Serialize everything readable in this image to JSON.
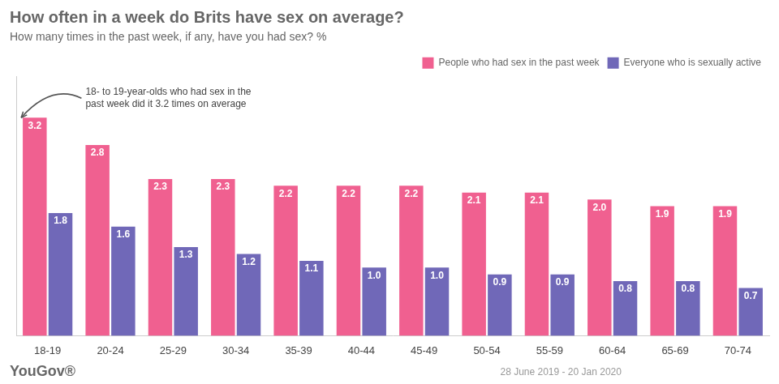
{
  "chart_data": {
    "type": "bar",
    "title": "How often in a week do Brits have sex on average?",
    "subtitle": "How many times in the past week, if any, have you had sex? %",
    "categories": [
      "18-19",
      "20-24",
      "25-29",
      "30-34",
      "35-39",
      "40-44",
      "45-49",
      "50-54",
      "55-59",
      "60-64",
      "65-69",
      "70-74"
    ],
    "series": [
      {
        "name": "People who had sex in the past week",
        "color": "#F06090",
        "values": [
          3.2,
          2.8,
          2.3,
          2.3,
          2.2,
          2.2,
          2.2,
          2.1,
          2.1,
          2.0,
          1.9,
          1.9
        ],
        "value_labels": [
          "3.2",
          "2.8",
          "2.3",
          "2.3",
          "2.2",
          "2.2",
          "2.2",
          "2.1",
          "2.1",
          "2.0",
          "1.9",
          "1.9"
        ]
      },
      {
        "name": "Everyone who is sexually active",
        "color": "#7068B8",
        "values": [
          1.8,
          1.6,
          1.3,
          1.2,
          1.1,
          1.0,
          1.0,
          0.9,
          0.9,
          0.8,
          0.8,
          0.7
        ],
        "value_labels": [
          "1.8",
          "1.6",
          "1.3",
          "1.2",
          "1.1",
          "1.0",
          "1.0",
          "0.9",
          "0.9",
          "0.8",
          "0.8",
          "0.7"
        ]
      }
    ],
    "ylim": [
      0,
      3.8
    ],
    "grid": false,
    "legend": "upper right",
    "data_labels": true,
    "tick_labels": "x",
    "annotation": "18- to 19-year-olds who had sex in the\npast week did it 3.2 times on average",
    "source": "YouGov®",
    "footnote": "28 June 2019 - 20 Jan 2020"
  }
}
